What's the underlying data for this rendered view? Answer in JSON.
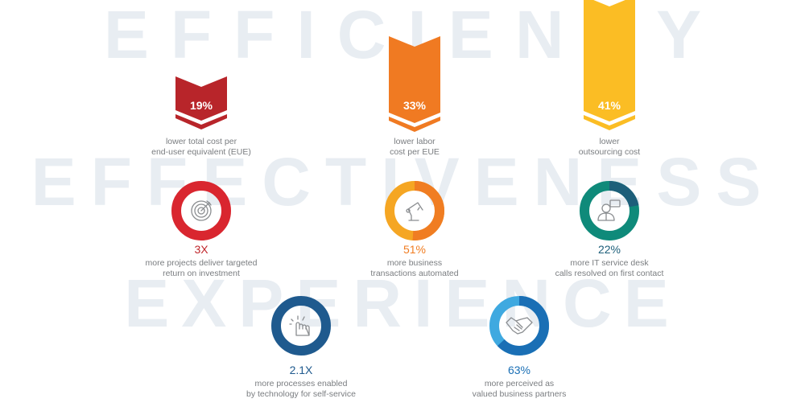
{
  "background_words": [
    "EFFICIENCY",
    "EFFECTIVENESS",
    "EXPERIENCE"
  ],
  "arrows": [
    {
      "value": "19%",
      "label_1": "lower total cost per",
      "label_2": "end-user equivalent (EUE)",
      "color": "#b8252a"
    },
    {
      "value": "33%",
      "label_1": "lower labor",
      "label_2": "cost per EUE",
      "color": "#f07a22"
    },
    {
      "value": "41%",
      "label_1": "lower",
      "label_2": "outsourcing cost",
      "color": "#fbbd24"
    }
  ],
  "rings": [
    {
      "value": "3X",
      "label_1": "more projects deliver targeted",
      "label_2": "return on investment",
      "icon": "target-icon",
      "color": "#d9262f",
      "accent": "#d9262f",
      "value_color": "#c0262b"
    },
    {
      "value": "51%",
      "label_1": "more business",
      "label_2": "transactions automated",
      "icon": "robot-arm-icon",
      "color": "#f5a623",
      "accent": "#f07d22",
      "fill_fraction": 0.51,
      "value_color": "#f07d22"
    },
    {
      "value": "22%",
      "label_1": "more IT service desk",
      "label_2": "calls resolved on first contact",
      "icon": "person-chat-icon",
      "color": "#0f8a7a",
      "accent": "#1d5f7a",
      "fill_fraction": 0.22,
      "value_color": "#1d5f7a"
    },
    {
      "value": "2.1X",
      "label_1": "more processes enabled",
      "label_2": "by technology for self-service",
      "icon": "touch-hand-icon",
      "color": "#1f5a8e",
      "accent": "#1f5a8e",
      "value_color": "#1f5a8e"
    },
    {
      "value": "63%",
      "label_1": "more perceived as",
      "label_2": "valued business partners",
      "icon": "handshake-icon",
      "color": "#3fa9e0",
      "accent": "#1a6fb5",
      "fill_fraction": 0.63,
      "value_color": "#1a6fb5"
    }
  ]
}
